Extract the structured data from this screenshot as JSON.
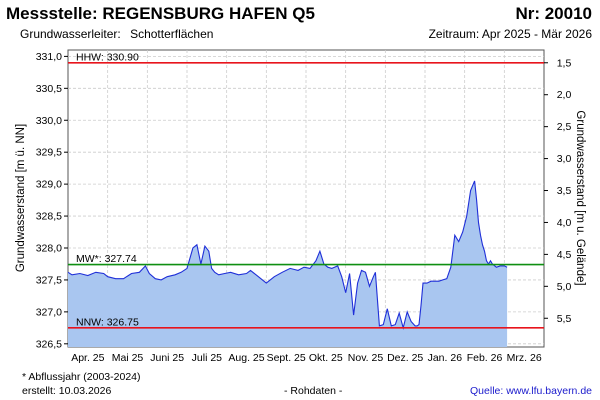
{
  "header": {
    "title": "Messstelle: REGENSBURG HAFEN Q5",
    "station_number": "Nr: 20010",
    "aquifer_label": "Grundwasserleiter:",
    "aquifer_value": "Schotterflächen",
    "period": "Zeitraum: Apr 2025 - Mär 2026"
  },
  "footer": {
    "footnote": "* Abflussjahr (2003-2024)",
    "created": "erstellt:  10.03.2026",
    "raw_data": "- Rohdaten -",
    "source": "Quelle:  www.lfu.bayern.de"
  },
  "colors": {
    "fill": "#a9c6f0",
    "line": "#1f2fd8",
    "hhw": "#e8141c",
    "nnw": "#e8141c",
    "mw": "#0f8f12",
    "grid": "#cccccc"
  },
  "chart_data": {
    "type": "area",
    "ylabel": "Grundwasserstand [m ü. NN]",
    "y2label": "Grundwasserstand [m u. Gelände]",
    "ylim": [
      326.45,
      331.1
    ],
    "yticks": [
      "331,0",
      "330,5",
      "330,0",
      "329,5",
      "329,0",
      "328,5",
      "328,0",
      "327,5",
      "327,0",
      "326,5"
    ],
    "yticks_values": [
      331.0,
      330.5,
      330.0,
      329.5,
      329.0,
      328.5,
      328.0,
      327.5,
      327.0,
      326.5
    ],
    "y2ticks": [
      "1,5",
      "2,0",
      "2,5",
      "3,0",
      "3,5",
      "4,0",
      "4,5",
      "5,0",
      "5,5"
    ],
    "y2ticks_depth": [
      1.5,
      2.0,
      2.5,
      3.0,
      3.5,
      4.0,
      4.5,
      5.0,
      5.5
    ],
    "surface_elevation": 332.4,
    "xrange_months": [
      0,
      12
    ],
    "month_labels": [
      "Apr. 25",
      "Mai 25",
      "Juni 25",
      "Juli 25",
      "Aug. 25",
      "Sept. 25",
      "Okt. 25",
      "Nov. 25",
      "Dez. 25",
      "Jan. 26",
      "Feb. 26",
      "Mrz. 26"
    ],
    "grid": true,
    "reference_lines": [
      {
        "key": "hhw",
        "label": "HHW: 330.90",
        "value": 330.9
      },
      {
        "key": "mw",
        "label": "MW*: 327.74",
        "value": 327.74
      },
      {
        "key": "nnw",
        "label": "NNW: 326.75",
        "value": 326.75
      }
    ],
    "series": [
      {
        "x": [
          0,
          0.1,
          0.3,
          0.5,
          0.7,
          0.9,
          1.0,
          1.2,
          1.4,
          1.6,
          1.8,
          1.95,
          2.05,
          2.2,
          2.35,
          2.5,
          2.7,
          2.85,
          3.0,
          3.15,
          3.25,
          3.35,
          3.45,
          3.55,
          3.62,
          3.7,
          3.8,
          3.95,
          4.1,
          4.3,
          4.5,
          4.6,
          4.8,
          5.0,
          5.2,
          5.4,
          5.6,
          5.8,
          5.95,
          6.1,
          6.25,
          6.35,
          6.45,
          6.55,
          6.65,
          6.8,
          6.9,
          7.0,
          7.1,
          7.2,
          7.3,
          7.4,
          7.5,
          7.6,
          7.7,
          7.75,
          7.85,
          7.95,
          8.05,
          8.15,
          8.25,
          8.35,
          8.45,
          8.55,
          8.65,
          8.75,
          8.8,
          8.85,
          8.9,
          8.95,
          9.05,
          9.15,
          9.25,
          9.35,
          9.45,
          9.55,
          9.65,
          9.75,
          9.85,
          9.95,
          10.05,
          10.15,
          10.25,
          10.3,
          10.35,
          10.4,
          10.45,
          10.5,
          10.55,
          10.6,
          10.65,
          10.7,
          10.8,
          10.9,
          11.0,
          11.07
        ],
        "y": [
          327.62,
          327.58,
          327.6,
          327.57,
          327.62,
          327.6,
          327.55,
          327.52,
          327.52,
          327.6,
          327.62,
          327.72,
          327.6,
          327.52,
          327.5,
          327.55,
          327.58,
          327.62,
          327.68,
          328.0,
          328.05,
          327.75,
          328.03,
          327.95,
          327.68,
          327.62,
          327.58,
          327.6,
          327.62,
          327.58,
          327.6,
          327.65,
          327.55,
          327.45,
          327.55,
          327.62,
          327.68,
          327.65,
          327.7,
          327.68,
          327.8,
          327.95,
          327.75,
          327.7,
          327.68,
          327.72,
          327.55,
          327.3,
          327.6,
          326.95,
          327.45,
          327.65,
          327.62,
          327.4,
          327.55,
          327.62,
          326.78,
          326.8,
          327.05,
          326.78,
          326.8,
          326.98,
          326.75,
          327.0,
          326.85,
          326.78,
          326.78,
          326.8,
          327.1,
          327.45,
          327.45,
          327.48,
          327.48,
          327.48,
          327.5,
          327.52,
          327.7,
          328.2,
          328.1,
          328.25,
          328.5,
          328.9,
          329.05,
          328.75,
          328.4,
          328.2,
          328.05,
          327.95,
          327.8,
          327.75,
          327.8,
          327.75,
          327.7,
          327.72,
          327.72,
          327.7
        ]
      }
    ]
  }
}
